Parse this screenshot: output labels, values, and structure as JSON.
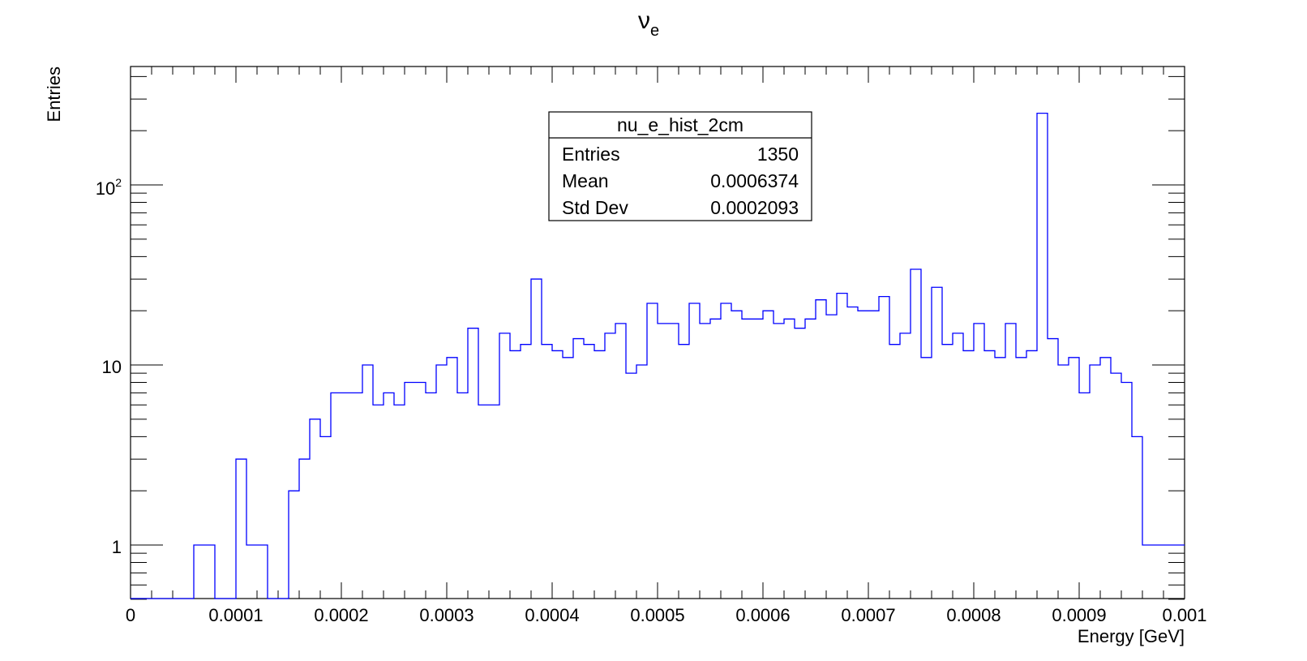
{
  "chart_data": {
    "type": "bar",
    "title": "ν",
    "title_subscript": "e",
    "xlabel": "Energy [GeV]",
    "ylabel": "Entries",
    "xlim": [
      0,
      0.001
    ],
    "ylim": [
      0.5,
      450
    ],
    "y_scale": "log",
    "grid": false,
    "line_color": "#0000ff",
    "x_ticks": [
      "0",
      "0.0001",
      "0.0002",
      "0.0003",
      "0.0004",
      "0.0005",
      "0.0006",
      "0.0007",
      "0.0008",
      "0.0009",
      "0.001"
    ],
    "y_tick_1": "1",
    "y_tick_10": "10",
    "y_tick_100_base": "10",
    "y_tick_100_exp": "2",
    "bin_width": 1e-05,
    "bin_values": [
      0,
      0,
      0,
      0,
      0,
      0,
      1,
      1,
      0,
      0,
      3,
      1,
      1,
      0,
      0,
      2,
      3,
      5,
      4,
      7,
      7,
      7,
      10,
      6,
      7,
      6,
      8,
      8,
      7,
      10,
      11,
      7,
      16,
      6,
      6,
      15,
      12,
      13,
      30,
      13,
      12,
      11,
      14,
      13,
      12,
      15,
      17,
      9,
      10,
      22,
      17,
      17,
      13,
      22,
      17,
      18,
      22,
      20,
      18,
      18,
      20,
      17,
      18,
      16,
      18,
      23,
      19,
      25,
      21,
      20,
      20,
      24,
      13,
      15,
      34,
      11,
      27,
      13,
      15,
      12,
      17,
      12,
      11,
      17,
      11,
      12,
      250,
      14,
      10,
      11,
      7,
      10,
      11,
      9,
      8,
      4,
      1,
      1,
      1,
      1
    ],
    "stats_box": {
      "title": "nu_e_hist_2cm",
      "rows": [
        {
          "label": "Entries",
          "value": "1350"
        },
        {
          "label": "Mean",
          "value": "0.0006374"
        },
        {
          "label": "Std Dev",
          "value": "0.0002093"
        }
      ]
    }
  }
}
